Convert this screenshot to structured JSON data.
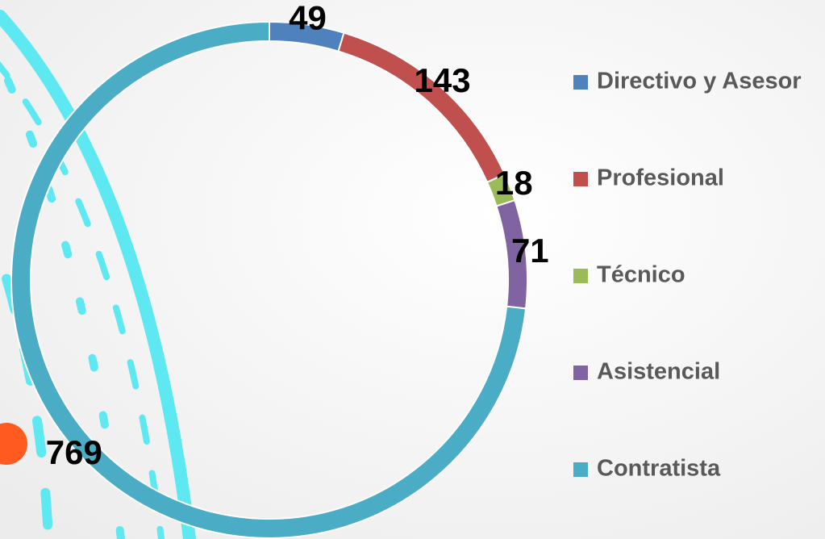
{
  "chart_data": {
    "type": "donut",
    "categories": [
      "Directivo y Asesor",
      "Profesional",
      "Técnico",
      "Asistencial",
      "Contratista"
    ],
    "values": [
      49,
      143,
      18,
      71,
      769
    ],
    "colors": [
      "#4f81bd",
      "#c0504d",
      "#9bbb59",
      "#8064a2",
      "#4bacc6"
    ],
    "legend": "right"
  }
}
